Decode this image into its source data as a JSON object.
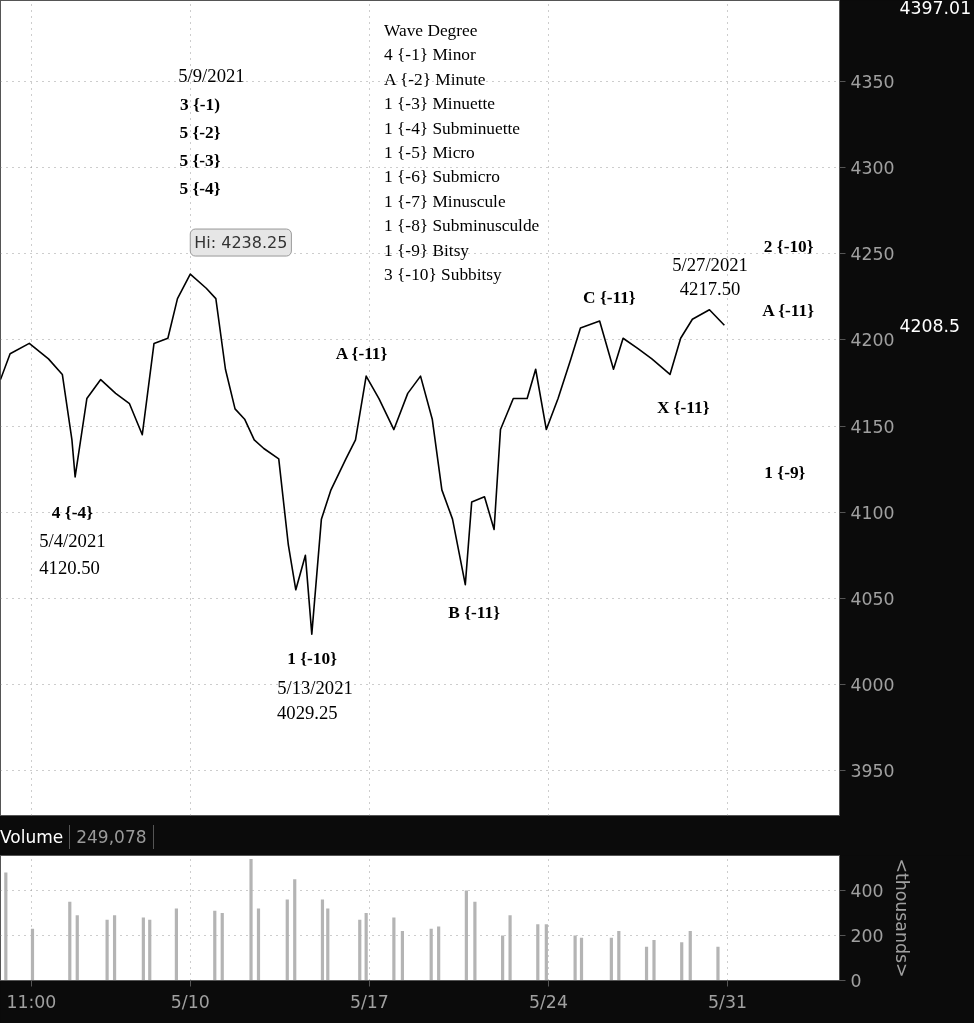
{
  "chart_data": [
    {
      "type": "line",
      "color": "#000000",
      "x": [
        "2021-05-02T14:00",
        "2021-05-02T23:00",
        "2021-05-03T17:00",
        "2021-05-04T11:00",
        "2021-05-05T00:00",
        "2021-05-05T09:00",
        "2021-05-05T12:00",
        "2021-05-05T23:00",
        "2021-05-06T12:00",
        "2021-05-07T02:00",
        "2021-05-07T15:00",
        "2021-05-08T03:00",
        "2021-05-08T14:00",
        "2021-05-09T03:00",
        "2021-05-09T12:00",
        "2021-05-10T00:00",
        "2021-05-10T15:00",
        "2021-05-11T00:00",
        "2021-05-11T09:00",
        "2021-05-11T18:00",
        "2021-05-12T03:00",
        "2021-05-12T12:00",
        "2021-05-12T21:00",
        "2021-05-13T11:00",
        "2021-05-13T20:00",
        "2021-05-14T03:00",
        "2021-05-14T12:00",
        "2021-05-14T18:00",
        "2021-05-15T03:00",
        "2021-05-15T12:00",
        "2021-05-16T02:00",
        "2021-05-16T11:00",
        "2021-05-16T21:00",
        "2021-05-17T09:00",
        "2021-05-17T23:00",
        "2021-05-18T12:00",
        "2021-05-19T00:00",
        "2021-05-19T11:00",
        "2021-05-19T20:00",
        "2021-05-20T06:00",
        "2021-05-20T18:00",
        "2021-05-21T00:00",
        "2021-05-21T12:00",
        "2021-05-21T21:00",
        "2021-05-22T03:00",
        "2021-05-22T15:00",
        "2021-05-23T04:00",
        "2021-05-23T12:00",
        "2021-05-23T22:00",
        "2021-05-24T09:00",
        "2021-05-24T21:00",
        "2021-05-25T06:00",
        "2021-05-26T00:00",
        "2021-05-26T13:00",
        "2021-05-26T22:00",
        "2021-05-27T12:00",
        "2021-05-28T01:00",
        "2021-05-28T18:00",
        "2021-05-29T04:00",
        "2021-05-29T15:00",
        "2021-05-30T07:00",
        "2021-05-30T21:00"
      ],
      "values": [
        4177,
        4192,
        4198,
        4189,
        4180,
        4142,
        4120.5,
        4166,
        4177,
        4169,
        4163,
        4145,
        4198,
        4201,
        4224,
        4238.25,
        4230,
        4224,
        4183,
        4160,
        4154,
        4142,
        4137,
        4131,
        4081,
        4055,
        4075,
        4029.25,
        4096,
        4113,
        4131,
        4142,
        4179,
        4166,
        4148,
        4169,
        4179,
        4154,
        4113,
        4096,
        4058,
        4106,
        4109,
        4090,
        4148,
        4166,
        4166,
        4183,
        4148,
        4166,
        4189,
        4207,
        4211,
        4183,
        4201,
        4195,
        4189,
        4180,
        4201,
        4212,
        4217.5,
        4208.5
      ],
      "xlim": [
        "2021-05-02T14:00",
        "2021-06-04T09:00"
      ],
      "ylim": [
        3924,
        4397.01
      ],
      "xticks": [
        {
          "value": "2021-05-03T19:00",
          "label": null
        },
        {
          "value": "2021-05-10",
          "label": null
        },
        {
          "value": "2021-05-17",
          "label": null
        },
        {
          "value": "2021-05-24",
          "label": null
        },
        {
          "value": "2021-05-31",
          "label": null
        }
      ],
      "yticks": [
        3950,
        4000,
        4050,
        4100,
        4150,
        4200,
        4250,
        4300,
        4350
      ],
      "grid": true,
      "tick_labels": "y",
      "annotations": [
        "Wave Degree",
        "4 {-1} Minor",
        "A {-2} Minute",
        "1 {-3} Minuette",
        "1 {-4} Subminuette",
        "1 {-5} Micro",
        "1 {-6} Submicro",
        "1 {-7} Minuscule",
        "1 {-8} Subminusculde",
        "1 {-9} Bitsy",
        "3 {-10} Subbitsy",
        "5/9/2021",
        "3 {-1)",
        "5 {-2}",
        "5 {-3}",
        "5 {-4}",
        "4 {-4}",
        "5/4/2021",
        "4120.50",
        "1 {-10}",
        "5/13/2021",
        "4029.25",
        "A {-11}",
        "B {-11}",
        "C {-11}",
        "X {-11}",
        "5/27/2021",
        "4217.50",
        "2 {-10}",
        "A {-11}",
        "1 {-9}",
        {
          "text": "Hi: 4238.25",
          "x": "2021-05-10T00:00",
          "y": 4238.25
        },
        "4397.01",
        "4208.5"
      ]
    },
    {
      "type": "bar",
      "title": "Volume",
      "subtitle": "249,078",
      "ylabel": "<thousands>",
      "color": "#b4b4b4",
      "x": [
        "2021-05-02T19:00",
        "2021-05-03T20:00",
        "2021-05-05T07:00",
        "2021-05-05T14:00",
        "2021-05-06T18:00",
        "2021-05-07T01:00",
        "2021-05-08T04:00",
        "2021-05-08T10:00",
        "2021-05-09T11:00",
        "2021-05-10T23:00",
        "2021-05-11T06:00",
        "2021-05-12T09:00",
        "2021-05-12T16:00",
        "2021-05-13T19:00",
        "2021-05-14T02:00",
        "2021-05-15T04:00",
        "2021-05-15T09:00",
        "2021-05-16T15:00",
        "2021-05-16T21:00",
        "2021-05-17T23:00",
        "2021-05-18T07:00",
        "2021-05-19T10:00",
        "2021-05-19T17:00",
        "2021-05-20T19:00",
        "2021-05-21T03:00",
        "2021-05-22T05:00",
        "2021-05-22T12:00",
        "2021-05-23T14:00",
        "2021-05-23T22:00",
        "2021-05-25T01:00",
        "2021-05-25T07:00",
        "2021-05-26T11:00",
        "2021-05-26T18:00",
        "2021-05-27T20:00",
        "2021-05-28T03:00",
        "2021-05-29T05:00",
        "2021-05-29T13:00",
        "2021-05-30T15:00"
      ],
      "values": [
        480,
        230,
        350,
        290,
        270,
        290,
        280,
        270,
        320,
        310,
        300,
        540,
        320,
        360,
        450,
        360,
        320,
        270,
        300,
        280,
        220,
        230,
        240,
        400,
        350,
        200,
        290,
        250,
        250,
        200,
        190,
        190,
        220,
        150,
        180,
        170,
        220,
        150
      ],
      "xlim": [
        "2021-05-02T14:00",
        "2021-06-04T09:00"
      ],
      "ylim": [
        0,
        555
      ],
      "xticks": [
        {
          "value": "2021-05-03T19:00",
          "label": "11:00"
        },
        {
          "value": "2021-05-10",
          "label": "5/10"
        },
        {
          "value": "2021-05-17",
          "label": "5/17"
        },
        {
          "value": "2021-05-24",
          "label": "5/24"
        },
        {
          "value": "2021-05-31",
          "label": "5/31"
        }
      ],
      "yticks": [
        0,
        200,
        400
      ],
      "grid": true
    }
  ]
}
